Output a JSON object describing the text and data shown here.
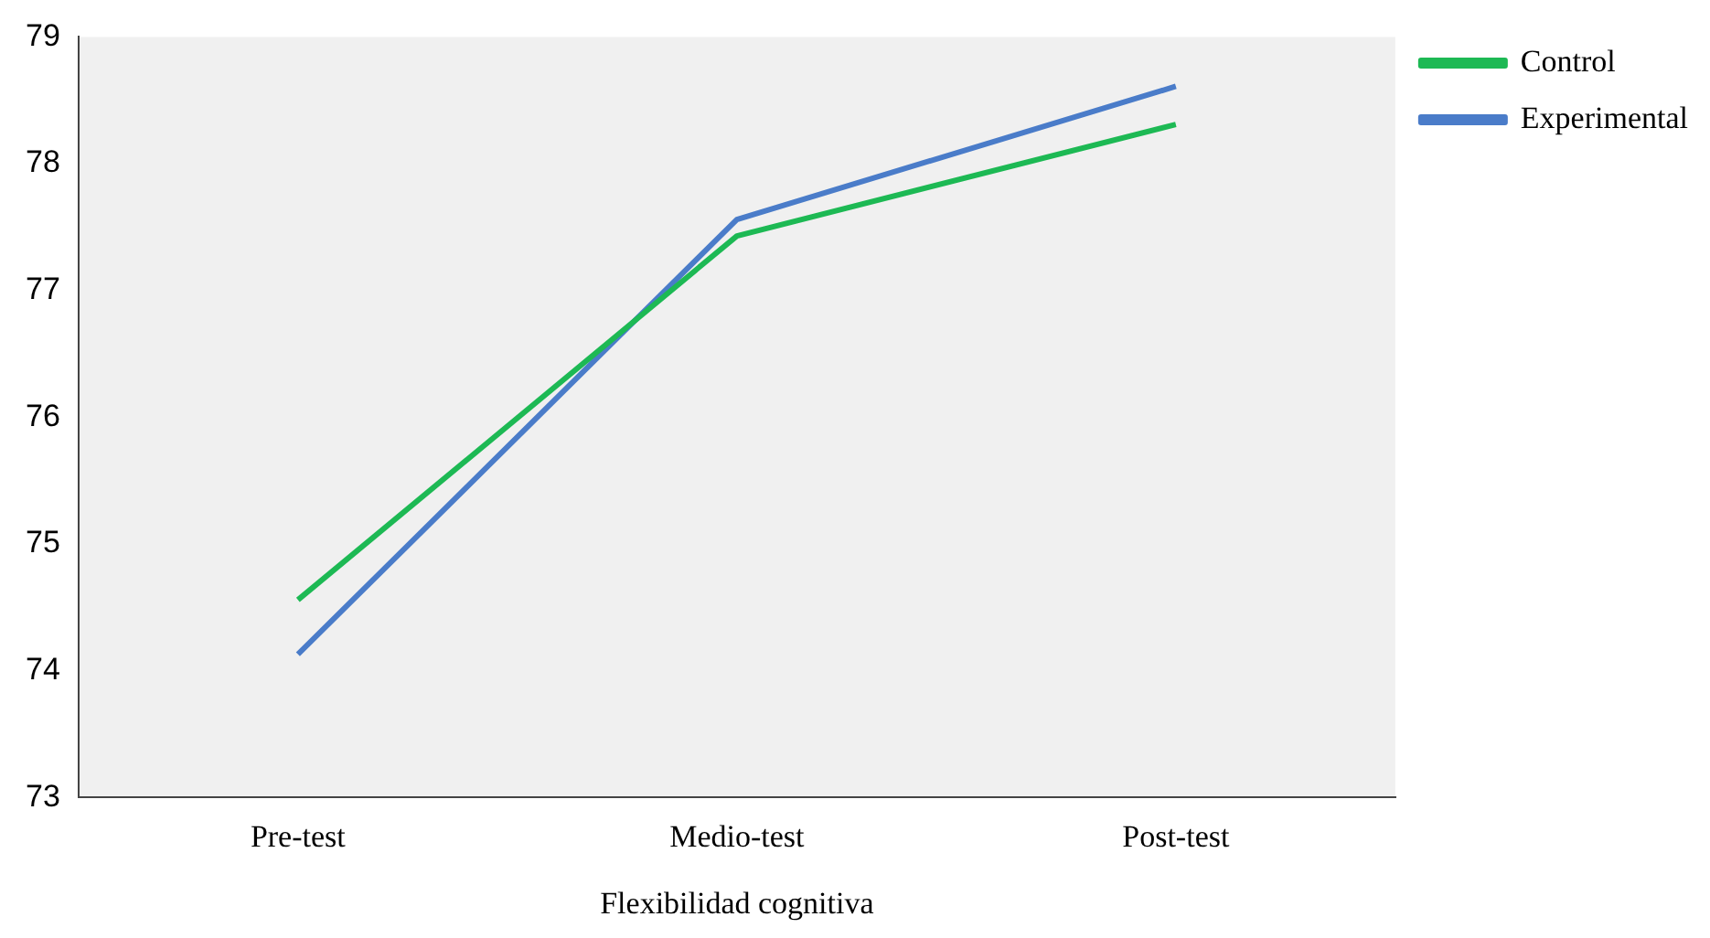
{
  "chart_data": {
    "type": "line",
    "xlabel": "Flexibilidad cognitiva",
    "categories": [
      "Pre-test",
      "Medio-test",
      "Post-test"
    ],
    "series": [
      {
        "name": "Control",
        "color": "#1db954",
        "values": [
          74.56,
          77.43,
          78.31
        ]
      },
      {
        "name": "Experimental",
        "color": "#4a7cc9",
        "values": [
          74.13,
          77.56,
          78.61
        ]
      }
    ],
    "ylim": [
      73,
      79
    ],
    "yticks": [
      73,
      74,
      75,
      76,
      77,
      78,
      79
    ],
    "grid": false,
    "legend": "top right",
    "marker": "none",
    "line_style": "solid"
  }
}
